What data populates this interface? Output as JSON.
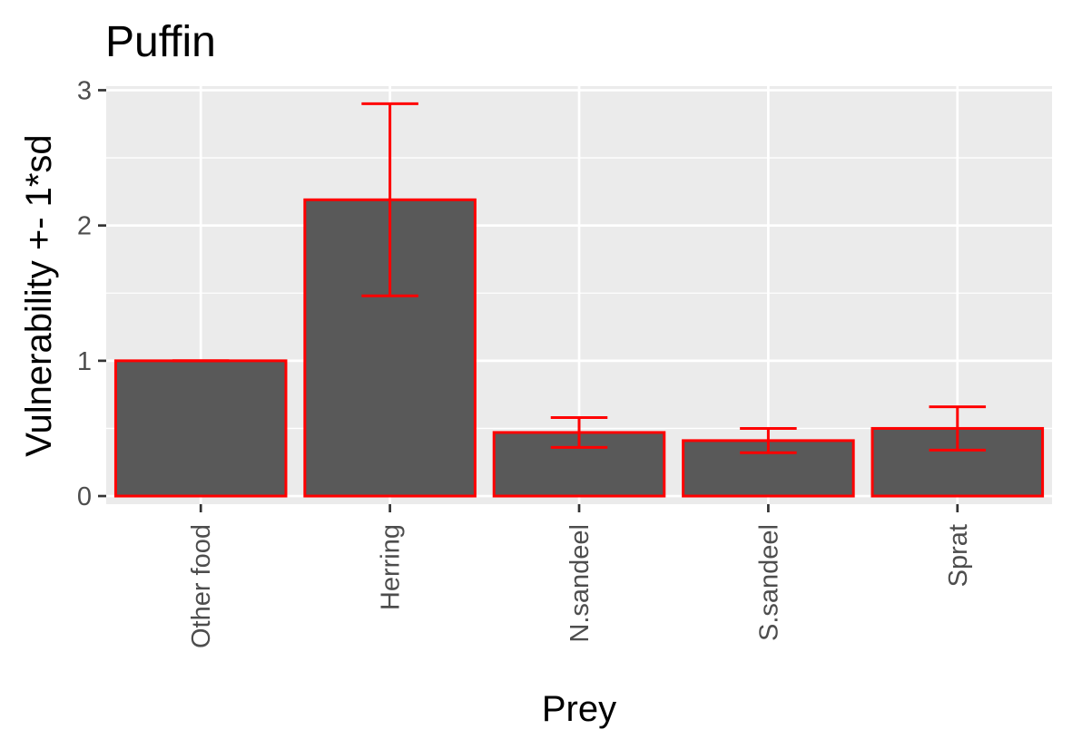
{
  "chart_data": {
    "type": "bar",
    "title": "Puffin",
    "xlabel": "Prey",
    "ylabel": "Vulnerability +- 1*sd",
    "categories": [
      "Other food",
      "Herring",
      "N.sandeel",
      "S.sandeel",
      "Sprat"
    ],
    "values": [
      1.0,
      2.19,
      0.47,
      0.41,
      0.5
    ],
    "error_low": [
      1.0,
      1.48,
      0.36,
      0.32,
      0.34
    ],
    "error_high": [
      1.0,
      2.9,
      0.58,
      0.5,
      0.66
    ],
    "ylim": [
      -0.06,
      3.03
    ],
    "yticks": [
      0,
      1,
      2,
      3
    ],
    "grid": true,
    "colors": {
      "bar_fill": "#595959",
      "bar_outline": "#ff0000",
      "errorbar": "#ff0000",
      "panel_background": "#ebebeb",
      "grid": "#ffffff"
    }
  }
}
